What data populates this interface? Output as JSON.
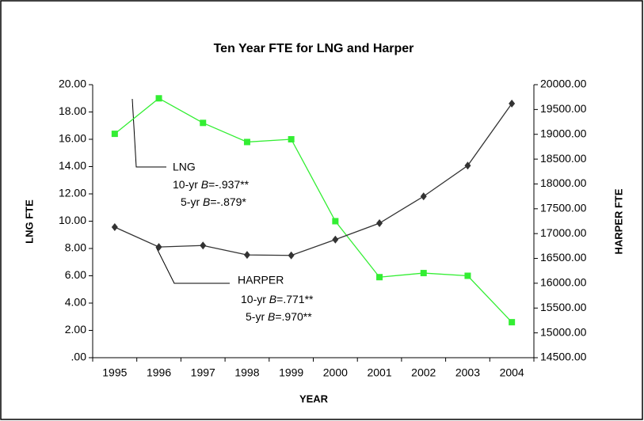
{
  "chart_data": {
    "type": "line",
    "title": "Ten Year FTE for LNG and Harper",
    "x_label": "YEAR",
    "y_label": "LNG FTE",
    "y2_label": "HARPER FTE",
    "categories": [
      "1995",
      "1996",
      "1997",
      "1998",
      "1999",
      "2000",
      "2001",
      "2002",
      "2003",
      "2004"
    ],
    "series": [
      {
        "name": "LNG",
        "color": "#33ee33",
        "marker": "square",
        "values": [
          16.4,
          19.0,
          17.2,
          15.8,
          16.0,
          10.0,
          5.9,
          6.2,
          6.0,
          2.6
        ]
      },
      {
        "name": "HARPER",
        "color": "#333333",
        "marker": "diamond",
        "axis": "y2",
        "values": [
          17130,
          16730,
          16760,
          16570,
          16560,
          16880,
          17210,
          17750,
          18370,
          19620
        ]
      }
    ],
    "ylim": [
      0,
      20
    ],
    "yticks": [
      {
        "value": 0,
        "label": ".00"
      },
      {
        "value": 2,
        "label": "2.00"
      },
      {
        "value": 4,
        "label": "4.00"
      },
      {
        "value": 6,
        "label": "6.00"
      },
      {
        "value": 8,
        "label": "8.00"
      },
      {
        "value": 10,
        "label": "10.00"
      },
      {
        "value": 12,
        "label": "12.00"
      },
      {
        "value": 14,
        "label": "14.00"
      },
      {
        "value": 16,
        "label": "16.00"
      },
      {
        "value": 18,
        "label": "18.00"
      },
      {
        "value": 20,
        "label": "20.00"
      }
    ],
    "y2lim": [
      14500,
      20000
    ],
    "y2ticks": [
      {
        "value": 14500,
        "label": "14500.00"
      },
      {
        "value": 15000,
        "label": "15000.00"
      },
      {
        "value": 15500,
        "label": "15500.00"
      },
      {
        "value": 16000,
        "label": "16000.00"
      },
      {
        "value": 16500,
        "label": "16500.00"
      },
      {
        "value": 17000,
        "label": "17000.00"
      },
      {
        "value": 17500,
        "label": "17500.00"
      },
      {
        "value": 18000,
        "label": "18000.00"
      },
      {
        "value": 18500,
        "label": "18500.00"
      },
      {
        "value": 19000,
        "label": "19000.00"
      },
      {
        "value": 19500,
        "label": "19500.00"
      },
      {
        "value": 20000,
        "label": "20000.00"
      }
    ],
    "annotations": [
      {
        "name": "LNG",
        "lines": [
          [
            "10-yr ",
            "B",
            "=-.937**"
          ],
          [
            "5-yr ",
            "B",
            "=-.879*"
          ]
        ]
      },
      {
        "name": "HARPER",
        "lines": [
          [
            "10-yr ",
            "B",
            "=.771**"
          ],
          [
            "5-yr ",
            "B",
            "=.970**"
          ]
        ]
      }
    ]
  }
}
